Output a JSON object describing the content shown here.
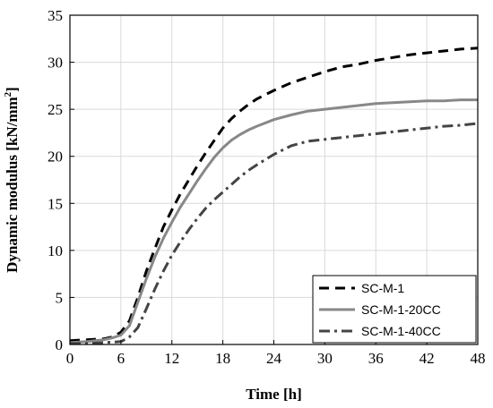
{
  "chart_data": {
    "type": "line",
    "title": "",
    "xlabel": "Time [h]",
    "ylabel_main": "Dynamic modulus [kN/mm",
    "ylabel_sup": "2",
    "ylabel_close": "]",
    "xlim": [
      0,
      48
    ],
    "ylim": [
      0,
      35
    ],
    "xticks": [
      0,
      6,
      12,
      18,
      24,
      30,
      36,
      42,
      48
    ],
    "yticks": [
      0,
      5,
      10,
      15,
      20,
      25,
      30,
      35
    ],
    "grid": true,
    "legend_position": "bottom-right",
    "series": [
      {
        "name": "SC-M-1",
        "color": "#000000",
        "style": "dashed",
        "x": [
          0,
          2,
          4,
          5,
          6,
          7,
          8,
          9,
          10,
          11,
          12,
          13,
          14,
          15,
          16,
          17,
          18,
          19,
          20,
          21,
          22,
          24,
          26,
          28,
          30,
          32,
          34,
          36,
          38,
          40,
          42,
          44,
          46,
          48
        ],
        "y": [
          0.4,
          0.5,
          0.6,
          0.8,
          1.3,
          2.5,
          5.0,
          7.8,
          10.2,
          12.5,
          14.3,
          16.0,
          17.5,
          19.0,
          20.4,
          21.7,
          23.0,
          24.0,
          24.8,
          25.5,
          26.1,
          27.0,
          27.8,
          28.4,
          29.0,
          29.5,
          29.8,
          30.2,
          30.5,
          30.8,
          31.0,
          31.2,
          31.4,
          31.5
        ]
      },
      {
        "name": "SC-M-1-20CC",
        "color": "#888888",
        "style": "solid",
        "x": [
          0,
          2,
          4,
          5,
          6,
          7,
          8,
          9,
          10,
          11,
          12,
          13,
          14,
          15,
          16,
          17,
          18,
          19,
          20,
          21,
          22,
          24,
          26,
          28,
          30,
          32,
          34,
          36,
          38,
          40,
          42,
          44,
          46,
          48
        ],
        "y": [
          0.2,
          0.3,
          0.5,
          0.7,
          1.0,
          2.0,
          4.5,
          7.0,
          9.3,
          11.3,
          13.0,
          14.6,
          16.0,
          17.4,
          18.7,
          19.9,
          20.9,
          21.7,
          22.3,
          22.8,
          23.2,
          23.9,
          24.4,
          24.8,
          25.0,
          25.2,
          25.4,
          25.6,
          25.7,
          25.8,
          25.9,
          25.9,
          26.0,
          26.0
        ]
      },
      {
        "name": "SC-M-1-40CC",
        "color": "#444444",
        "style": "dashdot",
        "x": [
          0,
          2,
          4,
          6,
          7,
          8,
          9,
          10,
          11,
          12,
          13,
          14,
          15,
          16,
          17,
          18,
          19,
          20,
          21,
          22,
          24,
          26,
          28,
          30,
          32,
          34,
          36,
          38,
          40,
          42,
          44,
          46,
          48
        ],
        "y": [
          0.1,
          0.1,
          0.2,
          0.3,
          0.8,
          1.8,
          3.8,
          5.9,
          7.8,
          9.5,
          10.9,
          12.2,
          13.4,
          14.5,
          15.4,
          16.2,
          17.0,
          17.8,
          18.5,
          19.1,
          20.2,
          21.1,
          21.6,
          21.8,
          22.0,
          22.2,
          22.4,
          22.6,
          22.8,
          23.0,
          23.2,
          23.3,
          23.5
        ]
      }
    ]
  }
}
